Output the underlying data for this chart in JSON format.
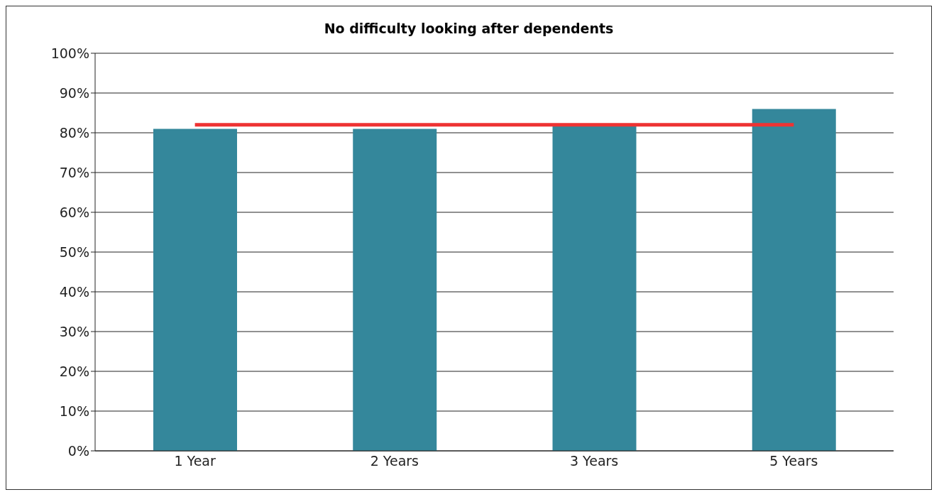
{
  "chart_data": {
    "type": "bar",
    "title": "No difficulty looking after dependents",
    "categories": [
      "1 Year",
      "2 Years",
      "3 Years",
      "5 Years"
    ],
    "series": [
      {
        "color": "#34879b",
        "values": [
          81,
          81,
          82,
          86
        ]
      },
      {
        "type": "line",
        "color": "#ee3333",
        "values": [
          82,
          82,
          82,
          82
        ],
        "marker": "none"
      }
    ],
    "ylim": [
      0,
      100
    ],
    "yticks": [
      {
        "value": 0,
        "label": "0%"
      },
      {
        "value": 10,
        "label": "10%"
      },
      {
        "value": 20,
        "label": "20%"
      },
      {
        "value": 30,
        "label": "30%"
      },
      {
        "value": 40,
        "label": "40%"
      },
      {
        "value": 50,
        "label": "50%"
      },
      {
        "value": 60,
        "label": "60%"
      },
      {
        "value": 70,
        "label": "70%"
      },
      {
        "value": 80,
        "label": "80%"
      },
      {
        "value": 90,
        "label": "90%"
      },
      {
        "value": 100,
        "label": "100%"
      }
    ],
    "grid": "y",
    "legend": false
  }
}
